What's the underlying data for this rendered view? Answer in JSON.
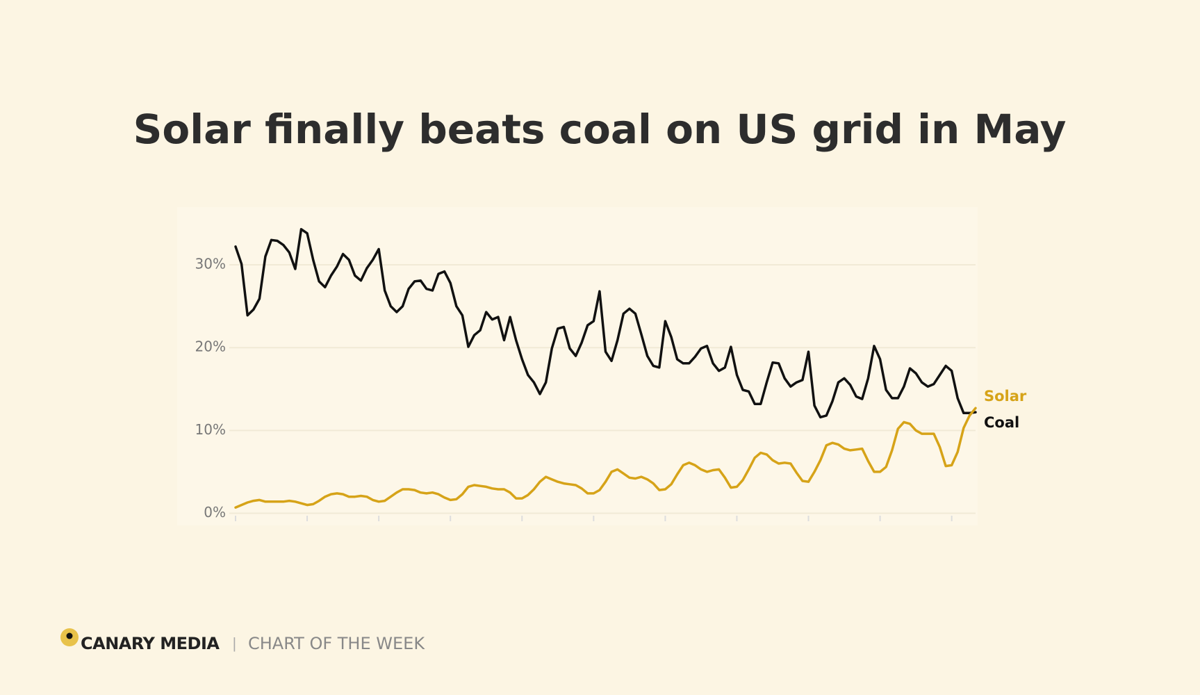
{
  "chart_data": {
    "type": "line",
    "title": "Solar finally beats coal on US grid in May",
    "categories": [
      null,
      null,
      null,
      null,
      null,
      null,
      null,
      null,
      null,
      null,
      null,
      null,
      null,
      null,
      null,
      null,
      null,
      null,
      null,
      null,
      null,
      null,
      null,
      null,
      null,
      null,
      null,
      null,
      null,
      null,
      null,
      null,
      null,
      null,
      null,
      null,
      null,
      null,
      null,
      null,
      null,
      null,
      null,
      null,
      null,
      null,
      null,
      null,
      null,
      null,
      null,
      null,
      null,
      null,
      null,
      null,
      null,
      null,
      null,
      null,
      null,
      null,
      null,
      null,
      null,
      null,
      null,
      null,
      null,
      null,
      null,
      null,
      null,
      null,
      null,
      null,
      null,
      null,
      null,
      null,
      null,
      null,
      null,
      null,
      null,
      null,
      null,
      null,
      null,
      null,
      null,
      null,
      null,
      null,
      null,
      null,
      null,
      null,
      null,
      null,
      null,
      null,
      null,
      null,
      null,
      null,
      null,
      null,
      null,
      null,
      null,
      null,
      null,
      null,
      null,
      null,
      null,
      null,
      null,
      null,
      null,
      null,
      null,
      null,
      null
    ],
    "series": [
      {
        "name": "Coal",
        "color": "#111111",
        "values": [
          32.2,
          30.1,
          23.9,
          24.6,
          25.9,
          31.0,
          33.0,
          32.9,
          32.4,
          31.5,
          29.5,
          34.3,
          33.8,
          30.6,
          28.0,
          27.3,
          28.7,
          29.8,
          31.3,
          30.6,
          28.7,
          28.1,
          29.6,
          30.6,
          31.9,
          26.9,
          25.0,
          24.3,
          25.0,
          27.1,
          28.0,
          28.1,
          27.1,
          26.9,
          28.9,
          29.2,
          27.8,
          25.0,
          23.9,
          20.1,
          21.5,
          22.1,
          24.3,
          23.4,
          23.7,
          20.9,
          23.7,
          20.9,
          18.6,
          16.7,
          15.8,
          14.4,
          15.8,
          19.9,
          22.3,
          22.5,
          19.9,
          19.0,
          20.6,
          22.7,
          23.2,
          26.8,
          19.5,
          18.4,
          20.9,
          24.1,
          24.7,
          24.1,
          21.6,
          19.0,
          17.8,
          17.6,
          23.2,
          21.3,
          18.6,
          18.1,
          18.1,
          18.9,
          19.9,
          20.2,
          18.1,
          17.2,
          17.6,
          20.1,
          16.7,
          14.9,
          14.7,
          13.2,
          13.2,
          15.8,
          18.2,
          18.1,
          16.3,
          15.3,
          15.8,
          16.1,
          19.5,
          13.0,
          11.6,
          11.8,
          13.5,
          15.8,
          16.3,
          15.5,
          14.1,
          13.8,
          16.3,
          20.2,
          18.6,
          14.9,
          13.9,
          13.9,
          15.3,
          17.5,
          16.9,
          15.8,
          15.3,
          15.6,
          16.7,
          17.8,
          17.2,
          13.9,
          12.1,
          12.1,
          12.2
        ]
      },
      {
        "name": "Solar",
        "color": "#d6a318",
        "values": [
          0.7,
          1.0,
          1.3,
          1.5,
          1.6,
          1.4,
          1.4,
          1.4,
          1.4,
          1.5,
          1.4,
          1.2,
          1.0,
          1.1,
          1.5,
          2.0,
          2.3,
          2.4,
          2.3,
          2.0,
          2.0,
          2.1,
          2.0,
          1.6,
          1.4,
          1.5,
          2.0,
          2.5,
          2.9,
          2.9,
          2.8,
          2.5,
          2.4,
          2.5,
          2.3,
          1.9,
          1.6,
          1.7,
          2.3,
          3.2,
          3.4,
          3.3,
          3.2,
          3.0,
          2.9,
          2.9,
          2.5,
          1.8,
          1.8,
          2.2,
          2.9,
          3.8,
          4.4,
          4.1,
          3.8,
          3.6,
          3.5,
          3.4,
          3.0,
          2.4,
          2.4,
          2.8,
          3.8,
          5.0,
          5.3,
          4.8,
          4.3,
          4.2,
          4.4,
          4.1,
          3.6,
          2.8,
          2.9,
          3.5,
          4.7,
          5.8,
          6.1,
          5.8,
          5.3,
          5.0,
          5.2,
          5.3,
          4.3,
          3.1,
          3.2,
          4.0,
          5.3,
          6.7,
          7.3,
          7.1,
          6.4,
          6.0,
          6.1,
          6.0,
          4.9,
          3.9,
          3.8,
          5.0,
          6.4,
          8.2,
          8.5,
          8.3,
          7.8,
          7.6,
          7.7,
          7.8,
          6.3,
          5.0,
          5.0,
          5.6,
          7.6,
          10.2,
          11.0,
          10.8,
          10.0,
          9.6,
          9.6,
          9.6,
          8.0,
          5.7,
          5.8,
          7.4,
          10.3,
          11.8,
          12.7
        ]
      }
    ],
    "ylim": [
      -1.3,
      36.8
    ],
    "yticks": [
      {
        "value": 0,
        "label": "0%"
      },
      {
        "value": 10,
        "label": "10%"
      },
      {
        "value": 20,
        "label": "20%"
      },
      {
        "value": 30,
        "label": "30%"
      }
    ],
    "grid": true
  },
  "footer": {
    "brand": "CANARY MEDIA",
    "separator": "|",
    "tagline": "CHART OF THE WEEK"
  }
}
